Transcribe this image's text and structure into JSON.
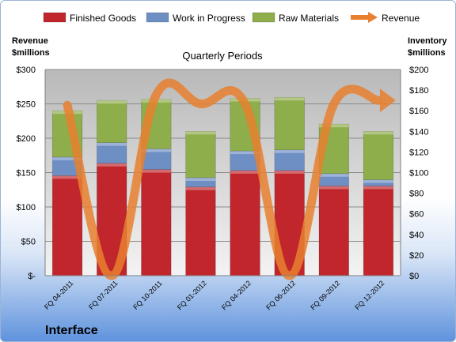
{
  "chart_data": {
    "type": "bar",
    "subtitle": "Quarterly Periods",
    "categories": [
      "FQ 04-2011",
      "FQ 07-2011",
      "FQ 10-2011",
      "FQ 01-2012",
      "FQ 04-2012",
      "FQ 06-2012",
      "FQ 09-2012",
      "FQ 12-2012"
    ],
    "stacked": true,
    "series": [
      {
        "name": "Finished Goods",
        "axis": "right",
        "color": "#c0262c",
        "values": [
          97,
          109,
          103,
          86,
          102,
          102,
          87,
          87
        ]
      },
      {
        "name": "Work in Progress",
        "axis": "right",
        "color": "#6e8fc4",
        "values": [
          18,
          20,
          20,
          9,
          19,
          20,
          12,
          6
        ]
      },
      {
        "name": "Raw Materials",
        "axis": "right",
        "color": "#8ead4b",
        "values": [
          45,
          41,
          48,
          45,
          51,
          51,
          48,
          47
        ]
      }
    ],
    "line_series": {
      "name": "Revenue",
      "axis": "left",
      "color": "#e8802f",
      "values": [
        248,
        0,
        263,
        250,
        250,
        0,
        250,
        255
      ]
    },
    "ylabel_left": "Revenue\n$millions",
    "ylabel_right": "Inventory\n$millions",
    "ylim_left": [
      0,
      300
    ],
    "ylim_right": [
      0,
      200
    ],
    "left_ticks": [
      "$-",
      "$50",
      "$100",
      "$150",
      "$200",
      "$250",
      "$300"
    ],
    "right_ticks": [
      "$0",
      "$20",
      "$40",
      "$60",
      "$80",
      "$100",
      "$120",
      "$140",
      "$160",
      "$180",
      "$200"
    ],
    "grid": true,
    "legend_position": "top",
    "footer": "Interface"
  }
}
